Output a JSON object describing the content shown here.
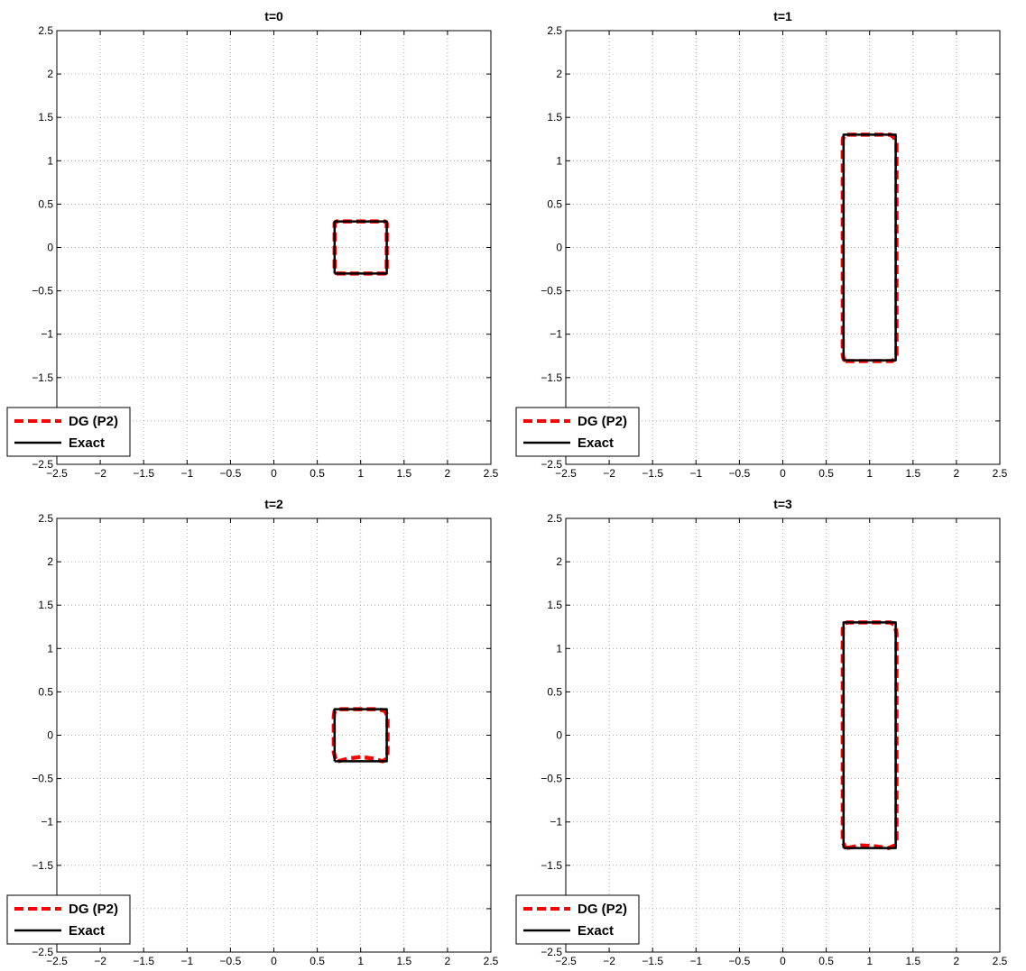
{
  "chart_data": [
    {
      "type": "line",
      "title": "t=0",
      "xlim": [
        -2.5,
        2.5
      ],
      "ylim": [
        -2.5,
        2.5
      ],
      "xticks": [
        "−2.5",
        "−2",
        "−1.5",
        "−1",
        "−0.5",
        "0",
        "0.5",
        "1",
        "1.5",
        "2",
        "2.5"
      ],
      "yticks": [
        "−2.5",
        "−2",
        "−1.5",
        "−1",
        "−0.5",
        "0",
        "0.5",
        "1",
        "1.5",
        "2",
        "2.5"
      ],
      "grid": true,
      "legend_position": "bottom-left",
      "series": [
        {
          "name": "DG (P2)",
          "color": "#ff0000",
          "style": "dashed",
          "x": [
            0.72,
            1.28,
            1.29,
            1.3,
            1.3,
            1.29,
            1.28,
            0.72,
            0.71,
            0.7,
            0.7,
            0.71,
            0.72
          ],
          "y": [
            -0.3,
            -0.3,
            -0.29,
            -0.28,
            0.28,
            0.29,
            0.3,
            0.3,
            0.29,
            0.28,
            -0.28,
            -0.29,
            -0.3
          ]
        },
        {
          "name": "Exact",
          "color": "#000000",
          "style": "solid",
          "x": [
            0.7,
            1.3,
            1.3,
            0.7,
            0.7
          ],
          "y": [
            -0.3,
            -0.3,
            0.3,
            0.3,
            -0.3
          ]
        }
      ]
    },
    {
      "type": "line",
      "title": "t=1",
      "xlim": [
        -2.5,
        2.5
      ],
      "ylim": [
        -2.5,
        2.5
      ],
      "xticks": [
        "−2.5",
        "−2",
        "−1.5",
        "−1",
        "−0.5",
        "0",
        "0.5",
        "1",
        "1.5",
        "2",
        "2.5"
      ],
      "yticks": [
        "−2.5",
        "−2",
        "−1.5",
        "−1",
        "−0.5",
        "0",
        "0.5",
        "1",
        "1.5",
        "2",
        "2.5"
      ],
      "grid": true,
      "legend_position": "bottom-left",
      "series": [
        {
          "name": "DG (P2)",
          "color": "#ff0000",
          "style": "dashed",
          "x": [
            0.72,
            1.26,
            1.29,
            1.31,
            1.31,
            1.28,
            1.24,
            0.72,
            0.7,
            0.69,
            0.69,
            0.7,
            0.72
          ],
          "y": [
            -1.31,
            -1.31,
            -1.28,
            -1.24,
            1.2,
            1.27,
            1.3,
            1.3,
            1.28,
            1.24,
            -1.24,
            -1.28,
            -1.31
          ]
        },
        {
          "name": "Exact",
          "color": "#000000",
          "style": "solid",
          "x": [
            0.7,
            1.3,
            1.3,
            0.7,
            0.7
          ],
          "y": [
            -1.3,
            -1.3,
            1.3,
            1.3,
            -1.3
          ]
        }
      ]
    },
    {
      "type": "line",
      "title": "t=2",
      "xlim": [
        -2.5,
        2.5
      ],
      "ylim": [
        -2.5,
        2.5
      ],
      "xticks": [
        "−2.5",
        "−2",
        "−1.5",
        "−1",
        "−0.5",
        "0",
        "0.5",
        "1",
        "1.5",
        "2",
        "2.5"
      ],
      "yticks": [
        "−2.5",
        "−2",
        "−1.5",
        "−1",
        "−0.5",
        "0",
        "0.5",
        "1",
        "1.5",
        "2",
        "2.5"
      ],
      "grid": true,
      "legend_position": "bottom-left",
      "series": [
        {
          "name": "DG (P2)",
          "color": "#ff0000",
          "style": "dashed",
          "x": [
            0.74,
            0.85,
            1.0,
            1.15,
            1.25,
            1.3,
            1.31,
            1.31,
            1.28,
            1.2,
            0.75,
            0.7,
            0.69,
            0.69,
            0.71,
            0.74
          ],
          "y": [
            -0.3,
            -0.27,
            -0.25,
            -0.27,
            -0.3,
            -0.27,
            -0.2,
            0.22,
            0.28,
            0.3,
            0.3,
            0.28,
            0.22,
            -0.2,
            -0.27,
            -0.3
          ]
        },
        {
          "name": "Exact",
          "color": "#000000",
          "style": "solid",
          "x": [
            0.7,
            1.3,
            1.3,
            0.7,
            0.7
          ],
          "y": [
            -0.3,
            -0.3,
            0.3,
            0.3,
            -0.3
          ]
        }
      ]
    },
    {
      "type": "line",
      "title": "t=3",
      "xlim": [
        -2.5,
        2.5
      ],
      "ylim": [
        -2.5,
        2.5
      ],
      "xticks": [
        "−2.5",
        "−2",
        "−1.5",
        "−1",
        "−0.5",
        "0",
        "0.5",
        "1",
        "1.5",
        "2",
        "2.5"
      ],
      "yticks": [
        "−2.5",
        "−2",
        "−1.5",
        "−1",
        "−0.5",
        "0",
        "0.5",
        "1",
        "1.5",
        "2",
        "2.5"
      ],
      "grid": true,
      "legend_position": "bottom-left",
      "series": [
        {
          "name": "DG (P2)",
          "color": "#ff0000",
          "style": "dashed",
          "x": [
            0.74,
            0.9,
            1.05,
            1.22,
            1.29,
            1.31,
            1.31,
            1.29,
            1.24,
            0.74,
            0.7,
            0.69,
            0.69,
            0.71,
            0.74
          ],
          "y": [
            -1.3,
            -1.27,
            -1.28,
            -1.3,
            -1.27,
            -1.2,
            1.18,
            1.27,
            1.3,
            1.3,
            1.28,
            1.22,
            -1.22,
            -1.28,
            -1.3
          ]
        },
        {
          "name": "Exact",
          "color": "#000000",
          "style": "solid",
          "x": [
            0.7,
            1.3,
            1.3,
            0.7,
            0.7
          ],
          "y": [
            -1.3,
            -1.3,
            1.3,
            1.3,
            -1.3
          ]
        }
      ]
    }
  ]
}
